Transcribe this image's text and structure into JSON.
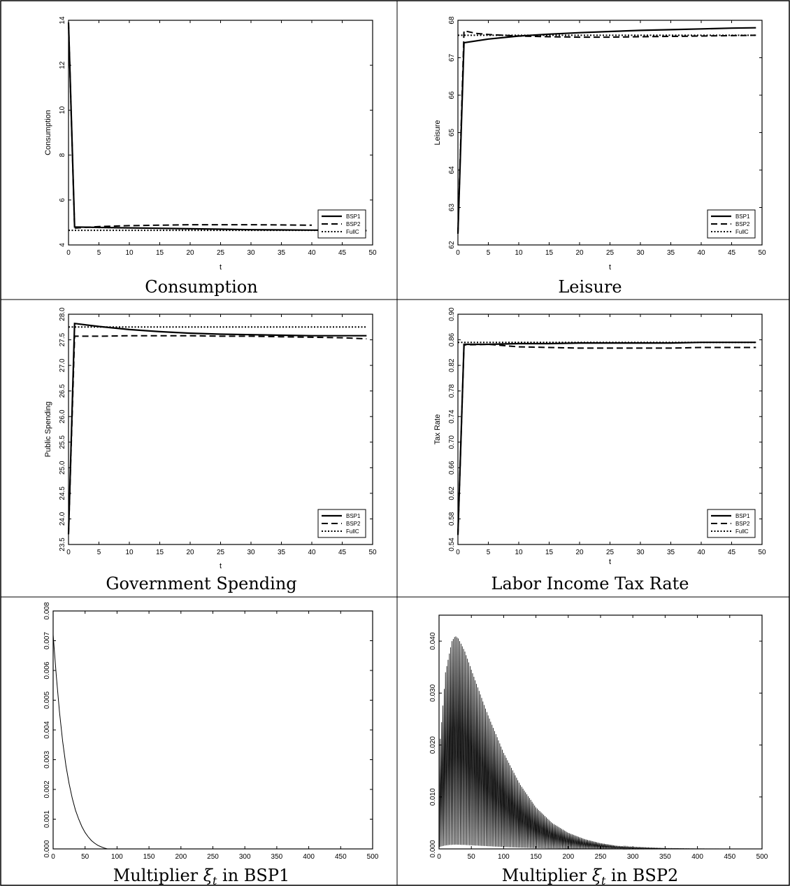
{
  "chart_data": [
    {
      "type": "line",
      "caption": "Consumption",
      "xlabel": "t",
      "ylabel": "Consumption",
      "xlim": [
        0,
        50
      ],
      "ylim": [
        4,
        14
      ],
      "xticks": [
        0,
        5,
        10,
        15,
        20,
        25,
        30,
        35,
        40,
        45,
        50
      ],
      "yticks": [
        4,
        6,
        8,
        10,
        12,
        14
      ],
      "ytick_labels": [
        "4",
        "6",
        "8",
        "10",
        "12",
        "14"
      ],
      "ytick_rotated": true,
      "legend": {
        "position": "bottom-right"
      },
      "series": [
        {
          "name": "BSP1",
          "style": "solid",
          "x": [
            0,
            1,
            5,
            10,
            15,
            20,
            25,
            30,
            35,
            40,
            45,
            49
          ],
          "y": [
            13.9,
            4.8,
            4.78,
            4.76,
            4.74,
            4.72,
            4.7,
            4.68,
            4.67,
            4.66,
            4.65,
            4.64
          ]
        },
        {
          "name": "BSP2",
          "style": "dashed",
          "x": [
            0,
            1,
            5,
            10,
            15,
            20,
            25,
            30,
            35,
            40
          ],
          "y": [
            13.9,
            4.75,
            4.82,
            4.86,
            4.88,
            4.9,
            4.9,
            4.9,
            4.89,
            4.88
          ]
        },
        {
          "name": "FullC",
          "style": "dotted",
          "x": [
            0,
            1,
            10,
            20,
            30,
            40,
            49
          ],
          "y": [
            4.65,
            4.65,
            4.65,
            4.65,
            4.65,
            4.65,
            4.65
          ]
        }
      ]
    },
    {
      "type": "line",
      "caption": "Leisure",
      "xlabel": "t",
      "ylabel": "Leisure",
      "xlim": [
        0,
        50
      ],
      "ylim": [
        62,
        68
      ],
      "xticks": [
        0,
        5,
        10,
        15,
        20,
        25,
        30,
        35,
        40,
        45,
        50
      ],
      "yticks": [
        62,
        63,
        64,
        65,
        66,
        67,
        68
      ],
      "ytick_labels": [
        "62",
        "63",
        "64",
        "65",
        "66",
        "67",
        "68"
      ],
      "ytick_rotated": true,
      "legend": {
        "position": "bottom-right"
      },
      "series": [
        {
          "name": "BSP1",
          "style": "solid",
          "x": [
            0,
            1,
            5,
            10,
            15,
            20,
            25,
            30,
            35,
            40,
            45,
            49
          ],
          "y": [
            62.3,
            67.4,
            67.5,
            67.58,
            67.63,
            67.67,
            67.7,
            67.73,
            67.75,
            67.77,
            67.79,
            67.8
          ]
        },
        {
          "name": "BSP2",
          "style": "dashed",
          "x": [
            0,
            1,
            3,
            5,
            10,
            15,
            20,
            25,
            30,
            35,
            40,
            45,
            49
          ],
          "y": [
            62.3,
            67.72,
            67.65,
            67.62,
            67.58,
            67.56,
            67.55,
            67.55,
            67.56,
            67.57,
            67.58,
            67.59,
            67.6
          ]
        },
        {
          "name": "FullC",
          "style": "dotted",
          "x": [
            0,
            1,
            10,
            20,
            30,
            40,
            49
          ],
          "y": [
            67.6,
            67.6,
            67.6,
            67.6,
            67.6,
            67.6,
            67.6
          ]
        }
      ]
    },
    {
      "type": "line",
      "caption": "Government Spending",
      "xlabel": "t",
      "ylabel": "Public Spending",
      "xlim": [
        0,
        50
      ],
      "ylim": [
        23.5,
        28.0
      ],
      "xticks": [
        0,
        5,
        10,
        15,
        20,
        25,
        30,
        35,
        40,
        45,
        50
      ],
      "yticks": [
        23.5,
        24.0,
        24.5,
        25.0,
        25.5,
        26.0,
        26.5,
        27.0,
        27.5,
        28.0
      ],
      "ytick_labels": [
        "23.5",
        "24.0",
        "24.5",
        "25.0",
        "25.5",
        "26.0",
        "26.5",
        "27.0",
        "27.5",
        "28.0"
      ],
      "ytick_rotated": true,
      "legend": {
        "position": "bottom-right"
      },
      "series": [
        {
          "name": "BSP1",
          "style": "solid",
          "x": [
            0,
            1,
            5,
            10,
            15,
            20,
            25,
            30,
            35,
            40,
            45,
            49
          ],
          "y": [
            23.7,
            27.82,
            27.76,
            27.7,
            27.66,
            27.63,
            27.61,
            27.6,
            27.59,
            27.58,
            27.58,
            27.58
          ]
        },
        {
          "name": "BSP2",
          "style": "dashed",
          "x": [
            0,
            1,
            5,
            10,
            15,
            20,
            25,
            30,
            35,
            40,
            45,
            49
          ],
          "y": [
            23.7,
            27.57,
            27.57,
            27.58,
            27.58,
            27.58,
            27.57,
            27.57,
            27.56,
            27.55,
            27.54,
            27.52
          ]
        },
        {
          "name": "FullC",
          "style": "dotted",
          "x": [
            0,
            1,
            10,
            20,
            30,
            40,
            49
          ],
          "y": [
            27.75,
            27.75,
            27.75,
            27.75,
            27.75,
            27.75,
            27.75
          ]
        }
      ]
    },
    {
      "type": "line",
      "caption": "Labor Income Tax Rate",
      "xlabel": "t",
      "ylabel": "Tax Rate",
      "xlim": [
        0,
        50
      ],
      "ylim": [
        0.54,
        0.9
      ],
      "xticks": [
        0,
        5,
        10,
        15,
        20,
        25,
        30,
        35,
        40,
        45,
        50
      ],
      "yticks": [
        0.54,
        0.58,
        0.62,
        0.66,
        0.7,
        0.74,
        0.78,
        0.82,
        0.86,
        0.9
      ],
      "ytick_labels": [
        "0.54",
        "0.58",
        "0.62",
        "0.66",
        "0.70",
        "0.74",
        "0.78",
        "0.82",
        "0.86",
        "0.90"
      ],
      "ytick_rotated": true,
      "legend": {
        "position": "bottom-right"
      },
      "series": [
        {
          "name": "BSP1",
          "style": "solid",
          "x": [
            0,
            1,
            5,
            10,
            15,
            20,
            25,
            30,
            35,
            40,
            45,
            49
          ],
          "y": [
            0.555,
            0.853,
            0.853,
            0.854,
            0.854,
            0.855,
            0.855,
            0.855,
            0.855,
            0.856,
            0.856,
            0.856
          ]
        },
        {
          "name": "BSP2",
          "style": "dashed",
          "x": [
            0,
            1,
            5,
            10,
            15,
            20,
            25,
            30,
            35,
            40,
            45,
            49
          ],
          "y": [
            0.555,
            0.852,
            0.853,
            0.849,
            0.848,
            0.847,
            0.847,
            0.847,
            0.847,
            0.848,
            0.848,
            0.848
          ]
        },
        {
          "name": "FullC",
          "style": "dotted",
          "x": [
            0,
            1,
            10,
            20,
            30,
            40,
            49
          ],
          "y": [
            0.856,
            0.856,
            0.856,
            0.856,
            0.856,
            0.856,
            0.856
          ]
        }
      ]
    },
    {
      "type": "line",
      "caption": "Multiplier ξt in BSP1",
      "xlabel": "",
      "ylabel": "",
      "xlim": [
        0,
        500
      ],
      "ylim": [
        0,
        0.008
      ],
      "xticks": [
        0,
        50,
        100,
        150,
        200,
        250,
        300,
        350,
        400,
        450,
        500
      ],
      "yticks": [
        0,
        0.001,
        0.002,
        0.003,
        0.004,
        0.005,
        0.006,
        0.007,
        0.008
      ],
      "ytick_labels": [
        "0.000",
        "0.001",
        "0.002",
        "0.003",
        "0.004",
        "0.005",
        "0.006",
        "0.007",
        "0.008"
      ],
      "ytick_rotated": true,
      "series": [
        {
          "style": "thin",
          "x": [
            0,
            5,
            10,
            15,
            20,
            25,
            30,
            35,
            40,
            45,
            50,
            55,
            60,
            65,
            70,
            75,
            80,
            85
          ],
          "y": [
            0.0072,
            0.0058,
            0.0046,
            0.0036,
            0.0028,
            0.0022,
            0.0017,
            0.0013,
            0.001,
            0.00075,
            0.00055,
            0.0004,
            0.00028,
            0.00019,
            0.00012,
            7e-05,
            3e-05,
            0.0
          ]
        }
      ]
    },
    {
      "type": "line",
      "caption": "Multiplier ξt in BSP2",
      "xlabel": "",
      "ylabel": "",
      "xlim": [
        0,
        500
      ],
      "ylim": [
        0,
        0.045
      ],
      "xticks": [
        0,
        50,
        100,
        150,
        200,
        250,
        300,
        350,
        400,
        450,
        500
      ],
      "yticks": [
        0,
        0.01,
        0.02,
        0.03,
        0.04
      ],
      "ytick_labels": [
        "0.000",
        "0.010",
        "0.020",
        "0.030",
        "0.040"
      ],
      "ytick_rotated": true,
      "oscillating": true,
      "series": [
        {
          "style": "thin",
          "x": [
            0,
            10,
            20,
            25,
            30,
            40,
            50,
            75,
            100,
            125,
            150,
            175,
            200,
            225,
            250,
            275,
            300,
            350,
            400,
            450,
            500
          ],
          "y": [
            0.018,
            0.034,
            0.04,
            0.041,
            0.0405,
            0.038,
            0.0345,
            0.026,
            0.0185,
            0.0125,
            0.008,
            0.005,
            0.0031,
            0.0019,
            0.0011,
            0.0006,
            0.00035,
            0.00012,
            4e-05,
            1e-05,
            0.0
          ]
        }
      ]
    }
  ]
}
